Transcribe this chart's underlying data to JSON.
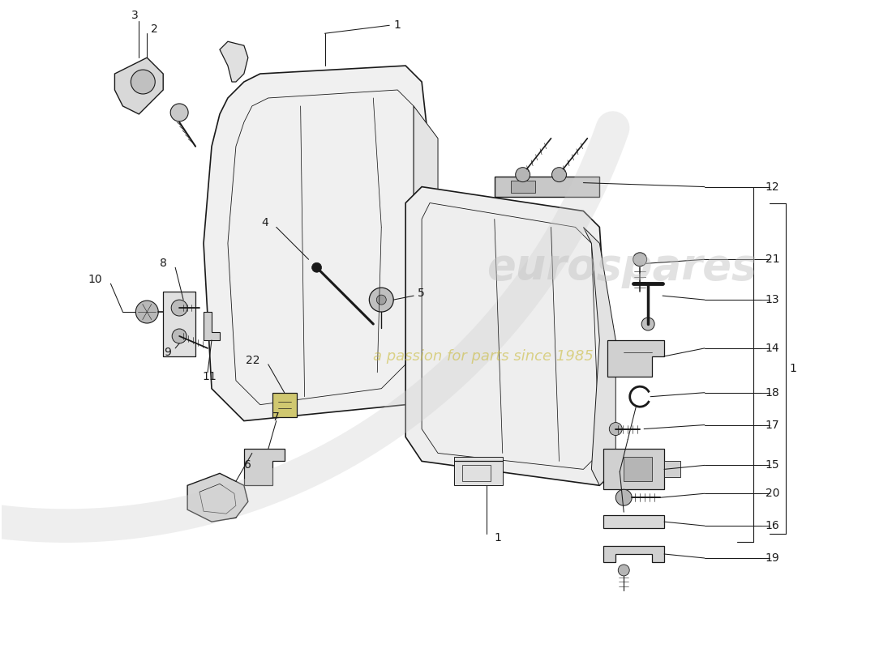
{
  "bg_color": "#ffffff",
  "lc": "#1a1a1a",
  "fs": 10,
  "llw": 0.75,
  "plw": 1.0
}
